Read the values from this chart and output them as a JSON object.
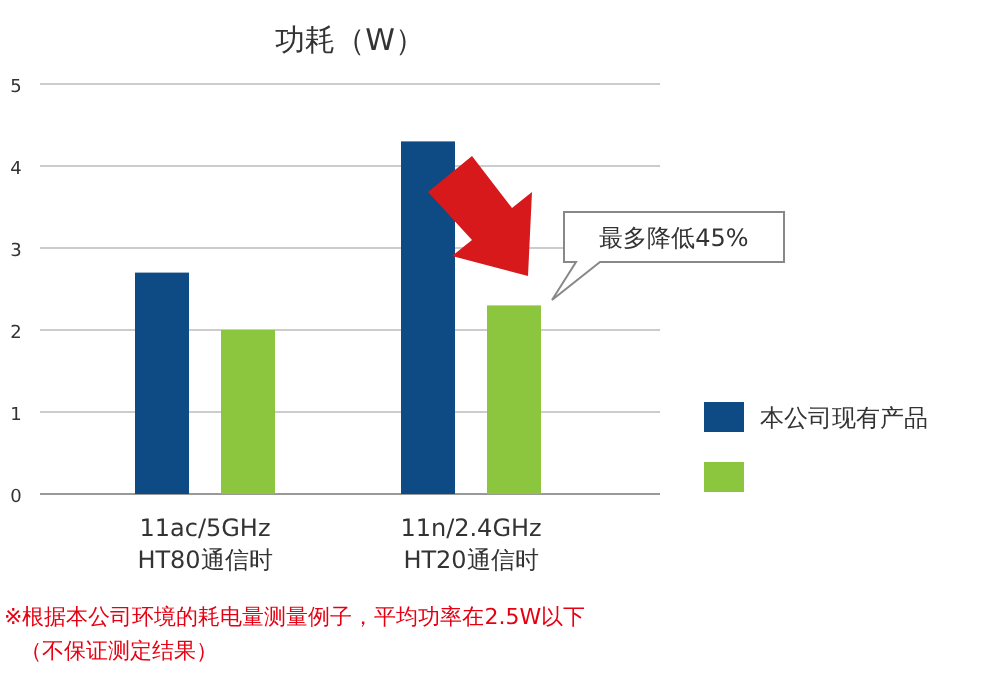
{
  "chart_data": {
    "type": "bar",
    "title": "功耗（W）",
    "categories": [
      "11ac/5GHz\nHT80通信时",
      "11n/2.4GHz\nHT20通信时"
    ],
    "series": [
      {
        "name": "本公司现有产品",
        "color": "#0e4a84",
        "values": [
          2.7,
          4.3
        ]
      },
      {
        "color": "#8cc63f",
        "values": [
          2.0,
          2.3
        ]
      }
    ],
    "ylim": [
      0,
      5
    ],
    "yticks": [
      0,
      1,
      2,
      3,
      4,
      5
    ],
    "grid": "y",
    "legend": "right",
    "annotations": [
      "最多降低45%",
      "※根据本公司环境的耗电量测量例子，平均功率在2.5W以下",
      "（不保证测定结果）"
    ]
  }
}
